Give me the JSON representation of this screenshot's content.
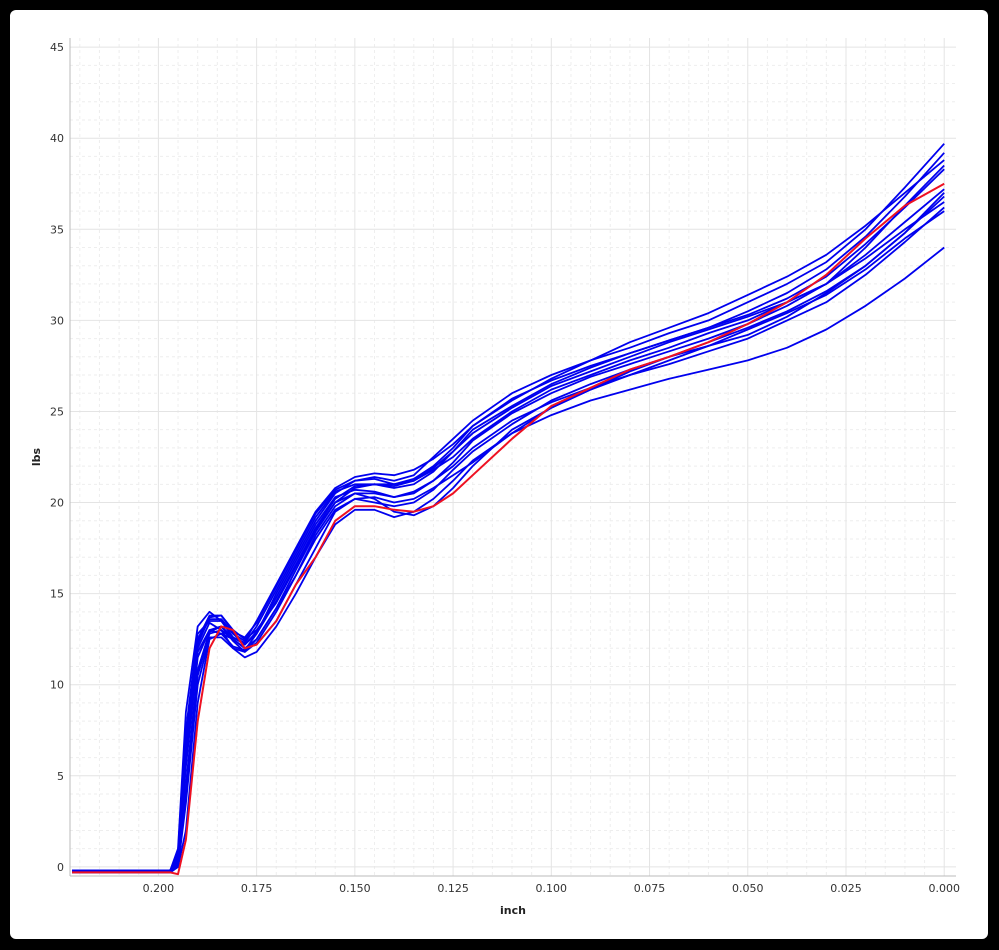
{
  "colors": {
    "background": "#000000",
    "plot_background": "#ffffff",
    "gridline": "#e4e4e4",
    "minor_gridline": "#eeeeee",
    "blue_series": "#0000ee",
    "red_series": "#ee1122"
  },
  "chart_data": {
    "type": "line",
    "title": "",
    "xlabel": "inch",
    "ylabel": "lbs",
    "x_reversed": true,
    "xlim": [
      0.2225,
      -0.003
    ],
    "ylim": [
      -0.5,
      45.5
    ],
    "x_ticks": [
      "0.200",
      "0.175",
      "0.150",
      "0.125",
      "0.100",
      "0.075",
      "0.050",
      "0.025",
      "0.000"
    ],
    "y_ticks": [
      "0",
      "5",
      "10",
      "15",
      "20",
      "25",
      "30",
      "35",
      "40",
      "45"
    ],
    "grid": "major and minor (dashed)",
    "legend": "none",
    "x": [
      0.222,
      0.197,
      0.195,
      0.193,
      0.19,
      0.187,
      0.184,
      0.181,
      0.178,
      0.175,
      0.17,
      0.165,
      0.16,
      0.155,
      0.15,
      0.145,
      0.14,
      0.135,
      0.13,
      0.125,
      0.12,
      0.11,
      0.1,
      0.09,
      0.08,
      0.07,
      0.06,
      0.05,
      0.04,
      0.03,
      0.02,
      0.01,
      0.0
    ],
    "series": [
      {
        "color": "#0000ee",
        "values": [
          -0.3,
          -0.3,
          0.5,
          6.5,
          12.5,
          13.8,
          13.8,
          13.0,
          12.5,
          13.0,
          14.5,
          16.5,
          18.5,
          20.0,
          20.8,
          21.0,
          21.0,
          21.2,
          21.8,
          22.5,
          23.5,
          25.0,
          26.2,
          27.0,
          27.8,
          28.5,
          29.3,
          30.0,
          31.0,
          32.0,
          34.0,
          36.3,
          38.5
        ]
      },
      {
        "color": "#0000ee",
        "values": [
          -0.2,
          -0.2,
          1.0,
          8.5,
          13.2,
          14.0,
          13.5,
          12.8,
          12.2,
          12.8,
          15.0,
          17.0,
          19.0,
          20.5,
          21.2,
          21.4,
          21.2,
          21.5,
          22.5,
          23.5,
          24.5,
          26.0,
          27.0,
          27.8,
          28.5,
          29.3,
          30.0,
          31.0,
          32.0,
          33.2,
          35.0,
          37.3,
          39.7
        ]
      },
      {
        "color": "#0000ee",
        "values": [
          -0.2,
          -0.2,
          0.0,
          4.0,
          10.5,
          12.8,
          13.0,
          12.5,
          12.0,
          12.5,
          14.2,
          16.0,
          18.2,
          19.8,
          20.5,
          20.5,
          20.3,
          20.6,
          21.2,
          22.0,
          23.0,
          24.5,
          25.5,
          26.3,
          27.0,
          27.6,
          28.3,
          29.0,
          30.0,
          31.0,
          32.5,
          34.3,
          36.2
        ]
      },
      {
        "color": "#0000ee",
        "values": [
          -0.3,
          -0.3,
          0.0,
          2.0,
          9.0,
          12.5,
          12.8,
          12.5,
          12.0,
          12.2,
          13.5,
          15.5,
          17.5,
          19.5,
          20.2,
          20.3,
          20.0,
          20.2,
          20.8,
          21.5,
          22.2,
          23.8,
          24.8,
          25.6,
          26.2,
          26.8,
          27.3,
          27.8,
          28.5,
          29.5,
          30.8,
          32.3,
          34.0
        ]
      },
      {
        "color": "#0000ee",
        "values": [
          -0.2,
          -0.2,
          0.8,
          7.5,
          12.8,
          13.5,
          13.5,
          12.6,
          12.3,
          13.2,
          15.2,
          17.2,
          19.2,
          20.6,
          21.0,
          21.0,
          20.8,
          21.0,
          21.7,
          22.8,
          24.0,
          25.3,
          26.5,
          27.4,
          28.2,
          28.9,
          29.6,
          30.5,
          31.5,
          32.8,
          34.6,
          36.8,
          39.2
        ]
      },
      {
        "color": "#0000ee",
        "values": [
          -0.3,
          -0.3,
          0.2,
          5.5,
          11.5,
          13.0,
          13.2,
          12.4,
          11.8,
          12.3,
          14.0,
          16.0,
          18.0,
          19.6,
          20.2,
          20.0,
          19.8,
          20.0,
          20.7,
          21.8,
          22.8,
          24.3,
          25.6,
          26.5,
          27.3,
          28.0,
          28.6,
          29.2,
          30.2,
          31.5,
          33.0,
          34.8,
          36.8
        ]
      },
      {
        "color": "#0000ee",
        "values": [
          -0.2,
          -0.2,
          0.5,
          6.0,
          12.0,
          13.4,
          13.0,
          12.0,
          11.8,
          12.5,
          14.2,
          16.3,
          18.4,
          20.0,
          20.5,
          20.2,
          19.5,
          19.3,
          19.8,
          20.8,
          22.0,
          24.0,
          25.2,
          26.2,
          27.0,
          27.8,
          28.6,
          29.5,
          30.4,
          31.4,
          32.8,
          34.5,
          36.0
        ]
      },
      {
        "color": "#0000ee",
        "values": [
          -0.3,
          -0.3,
          0.0,
          3.5,
          10.0,
          12.6,
          12.6,
          12.0,
          11.5,
          11.8,
          13.2,
          15.0,
          17.0,
          18.8,
          19.6,
          19.6,
          19.2,
          19.5,
          20.2,
          21.2,
          22.3,
          23.8,
          25.2,
          26.2,
          27.2,
          28.0,
          28.8,
          29.6,
          30.5,
          31.6,
          33.0,
          34.8,
          37.0
        ]
      },
      {
        "color": "#0000ee",
        "values": [
          -0.2,
          -0.2,
          0.6,
          7.0,
          12.4,
          13.6,
          13.6,
          12.8,
          12.4,
          13.5,
          15.5,
          17.5,
          19.5,
          20.8,
          21.4,
          21.6,
          21.5,
          21.8,
          22.4,
          23.2,
          24.2,
          25.6,
          26.8,
          27.8,
          28.8,
          29.6,
          30.4,
          31.4,
          32.4,
          33.6,
          35.2,
          37.0,
          38.8
        ]
      },
      {
        "color": "#0000ee",
        "values": [
          -0.3,
          -0.3,
          0.3,
          6.0,
          11.8,
          13.0,
          12.8,
          12.1,
          11.9,
          12.8,
          14.6,
          16.6,
          18.6,
          20.2,
          20.9,
          21.0,
          20.9,
          21.2,
          21.9,
          22.8,
          23.8,
          25.2,
          26.4,
          27.2,
          28.0,
          28.8,
          29.5,
          30.2,
          31.0,
          32.0,
          33.4,
          35.0,
          36.5
        ]
      },
      {
        "color": "#0000ee",
        "values": [
          -0.2,
          -0.2,
          0.1,
          4.5,
          10.8,
          12.9,
          13.2,
          12.6,
          12.2,
          12.9,
          14.8,
          16.8,
          18.8,
          20.3,
          20.7,
          20.6,
          20.3,
          20.5,
          21.2,
          22.2,
          23.4,
          24.9,
          26.0,
          26.9,
          27.6,
          28.3,
          29.0,
          29.8,
          30.8,
          32.0,
          33.6,
          35.4,
          37.2
        ]
      },
      {
        "color": "#0000ee",
        "values": [
          -0.3,
          -0.3,
          0.4,
          5.8,
          12.2,
          13.7,
          13.8,
          12.9,
          12.6,
          13.4,
          15.4,
          17.4,
          19.4,
          20.7,
          21.2,
          21.3,
          21.0,
          21.3,
          22.0,
          23.0,
          24.2,
          25.7,
          26.7,
          27.5,
          28.2,
          28.9,
          29.6,
          30.3,
          31.2,
          32.4,
          34.2,
          36.2,
          38.3
        ]
      },
      {
        "color": "#ee1122",
        "values": [
          -0.3,
          -0.3,
          -0.4,
          1.5,
          8.0,
          12.0,
          13.2,
          13.0,
          12.0,
          12.2,
          13.5,
          15.5,
          17.0,
          19.0,
          19.8,
          19.8,
          19.6,
          19.5,
          19.8,
          20.5,
          21.5,
          23.5,
          25.3,
          26.3,
          27.3,
          28.0,
          28.8,
          29.8,
          31.0,
          32.5,
          34.5,
          36.3,
          37.5
        ]
      }
    ]
  }
}
